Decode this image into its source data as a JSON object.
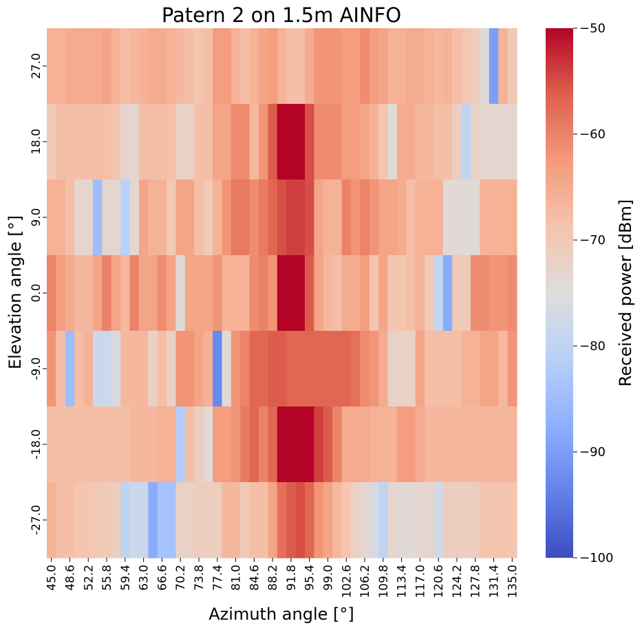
{
  "chart_data": {
    "type": "heatmap",
    "title": "Patern 2 on 1.5m AINFO",
    "xlabel": "Azimuth angle [°]",
    "ylabel": "Elevation angle [°]",
    "colorbar_label": "Received power [dBm]",
    "vmin": -100,
    "vmax": -50,
    "colormap": "coolwarm",
    "colorbar_ticks": [
      -50,
      -60,
      -70,
      -80,
      -90,
      -100
    ],
    "colorbar_tick_labels": [
      "−50",
      "−60",
      "−70",
      "−80",
      "−90",
      "−100"
    ],
    "x_tick_labels": [
      "45.0",
      "48.6",
      "52.2",
      "55.8",
      "59.4",
      "63.0",
      "66.6",
      "70.2",
      "73.8",
      "77.4",
      "81.0",
      "84.6",
      "88.2",
      "91.8",
      "95.4",
      "99.0",
      "102.6",
      "106.2",
      "109.8",
      "113.4",
      "117.0",
      "120.6",
      "124.2",
      "127.8",
      "131.4",
      "135.0"
    ],
    "y_tick_labels": [
      "27.0",
      "18.0",
      "9.0",
      "0.0",
      "-9.0",
      "-18.0",
      "-27.0"
    ],
    "x": [
      45.0,
      46.8,
      48.6,
      50.4,
      52.2,
      54.0,
      55.8,
      57.6,
      59.4,
      61.2,
      63.0,
      64.8,
      66.6,
      68.4,
      70.2,
      72.0,
      73.8,
      75.6,
      77.4,
      79.2,
      81.0,
      82.8,
      84.6,
      86.4,
      88.2,
      90.0,
      91.8,
      93.6,
      95.4,
      97.2,
      99.0,
      100.8,
      102.6,
      104.4,
      106.2,
      108.0,
      109.8,
      111.6,
      113.4,
      115.2,
      117.0,
      118.8,
      120.6,
      122.4,
      124.2,
      126.0,
      127.8,
      129.6,
      131.4,
      133.2,
      135.0
    ],
    "y": [
      27.0,
      18.0,
      9.0,
      0.0,
      -9.0,
      -18.0,
      -27.0
    ],
    "z": [
      [
        -66,
        -66,
        -65,
        -65,
        -65,
        -65,
        -64,
        -66,
        -68,
        -67,
        -66,
        -65,
        -65,
        -66,
        -67,
        -68,
        -69,
        -68,
        -63,
        -63,
        -66,
        -68,
        -66,
        -64,
        -63,
        -66,
        -68,
        -68,
        -65,
        -62,
        -62,
        -62,
        -63,
        -63,
        -61,
        -63,
        -64,
        -66,
        -66,
        -65,
        -65,
        -66,
        -67,
        -66,
        -68,
        -69,
        -71,
        -74,
        -90,
        -66,
        -70
      ],
      [
        -70,
        -68,
        -68,
        -68,
        -68,
        -68,
        -68,
        -69,
        -73,
        -73,
        -68,
        -68,
        -68,
        -68,
        -72,
        -72,
        -68,
        -68,
        -64,
        -64,
        -61,
        -61,
        -67,
        -62,
        -56,
        -50,
        -50,
        -50,
        -55,
        -61,
        -61,
        -61,
        -63,
        -63,
        -64,
        -66,
        -69,
        -74,
        -65,
        -65,
        -67,
        -67,
        -68,
        -68,
        -71,
        -80,
        -72,
        -73,
        -73,
        -73,
        -73
      ],
      [
        -66,
        -66,
        -68,
        -73,
        -73,
        -85,
        -73,
        -73,
        -81,
        -73,
        -64,
        -66,
        -66,
        -70,
        -64,
        -64,
        -68,
        -70,
        -66,
        -62,
        -59,
        -59,
        -61,
        -59,
        -57,
        -55,
        -54,
        -54,
        -55,
        -64,
        -66,
        -66,
        -60,
        -62,
        -60,
        -62,
        -64,
        -64,
        -65,
        -68,
        -66,
        -66,
        -66,
        -74,
        -74,
        -74,
        -74,
        -66,
        -66,
        -66,
        -66
      ],
      [
        -60,
        -63,
        -65,
        -67,
        -67,
        -64,
        -60,
        -64,
        -67,
        -60,
        -64,
        -64,
        -61,
        -64,
        -74,
        -64,
        -64,
        -64,
        -62,
        -66,
        -66,
        -66,
        -61,
        -60,
        -62,
        -50,
        -50,
        -50,
        -56,
        -64,
        -67,
        -68,
        -65,
        -65,
        -63,
        -69,
        -64,
        -69,
        -69,
        -68,
        -66,
        -70,
        -79,
        -88,
        -70,
        -70,
        -61,
        -61,
        -62,
        -62,
        -61
      ],
      [
        -62,
        -68,
        -85,
        -68,
        -66,
        -78,
        -78,
        -76,
        -67,
        -67,
        -67,
        -72,
        -68,
        -72,
        -62,
        -62,
        -64,
        -66,
        -93,
        -74,
        -62,
        -60,
        -57,
        -57,
        -56,
        -56,
        -57,
        -57,
        -57,
        -57,
        -57,
        -57,
        -57,
        -58,
        -61,
        -62,
        -65,
        -72,
        -72,
        -72,
        -64,
        -68,
        -68,
        -68,
        -68,
        -66,
        -66,
        -64,
        -64,
        -67,
        -62
      ],
      [
        -68,
        -68,
        -68,
        -68,
        -68,
        -68,
        -68,
        -68,
        -68,
        -67,
        -67,
        -67,
        -66,
        -66,
        -82,
        -68,
        -71,
        -74,
        -63,
        -63,
        -62,
        -59,
        -57,
        -60,
        -57,
        -50,
        -50,
        -50,
        -50,
        -54,
        -56,
        -60,
        -65,
        -65,
        -65,
        -66,
        -66,
        -66,
        -63,
        -63,
        -65,
        -67,
        -67,
        -67,
        -67,
        -67,
        -67,
        -67,
        -67,
        -67,
        -67
      ],
      [
        -66,
        -68,
        -68,
        -69,
        -69,
        -70,
        -70,
        -71,
        -80,
        -78,
        -78,
        -88,
        -84,
        -84,
        -72,
        -72,
        -71,
        -71,
        -71,
        -67,
        -67,
        -70,
        -68,
        -68,
        -64,
        -58,
        -56,
        -55,
        -57,
        -62,
        -64,
        -67,
        -69,
        -72,
        -73,
        -76,
        -80,
        -73,
        -74,
        -74,
        -73,
        -73,
        -77,
        -71,
        -71,
        -71,
        -71,
        -69,
        -69,
        -69,
        -69
      ]
    ]
  }
}
